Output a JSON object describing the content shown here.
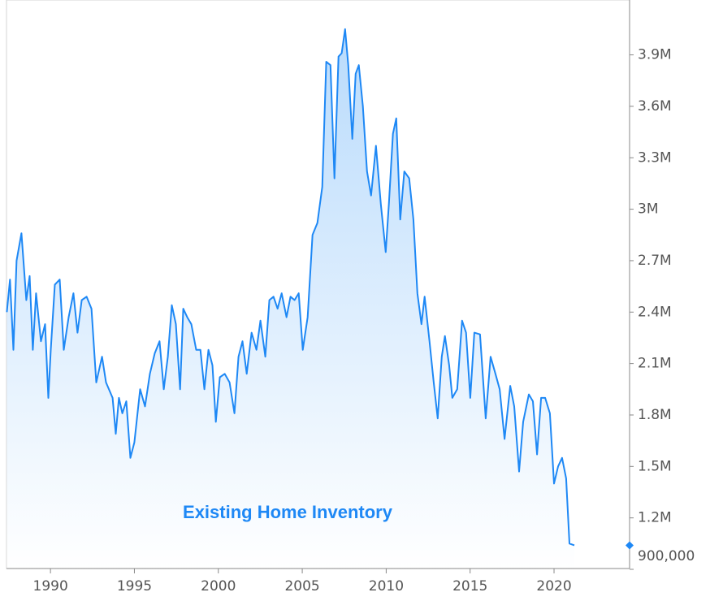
{
  "chart_data": {
    "type": "area",
    "annotation": "Existing Home Inventory",
    "color": "#1e88f5",
    "xlim": [
      1987.38,
      2024.5
    ],
    "xticks": [
      1990,
      1995,
      2000,
      2005,
      2010,
      2015,
      2020
    ],
    "ylim": [
      900000,
      4220000
    ],
    "yticks": [
      {
        "value": 900000,
        "label": "900,000"
      },
      {
        "value": 1200000,
        "label": "1.2M"
      },
      {
        "value": 1500000,
        "label": "1.5M"
      },
      {
        "value": 1800000,
        "label": "1.8M"
      },
      {
        "value": 2100000,
        "label": "2.1M"
      },
      {
        "value": 2400000,
        "label": "2.4M"
      },
      {
        "value": 2700000,
        "label": "2.7M"
      },
      {
        "value": 3000000,
        "label": "3M"
      },
      {
        "value": 3300000,
        "label": "3.3M"
      },
      {
        "value": 3600000,
        "label": "3.6M"
      },
      {
        "value": 3900000,
        "label": "3.9M"
      }
    ],
    "x": [
      1987.4,
      1987.59,
      1987.79,
      1987.98,
      1988.27,
      1988.56,
      1988.76,
      1988.95,
      1989.14,
      1989.43,
      1989.68,
      1989.87,
      1990.02,
      1990.26,
      1990.55,
      1990.79,
      1991.08,
      1991.37,
      1991.61,
      1991.86,
      1992.15,
      1992.44,
      1992.73,
      1993.07,
      1993.31,
      1993.7,
      1993.89,
      1994.08,
      1994.28,
      1994.52,
      1994.76,
      1995.0,
      1995.34,
      1995.63,
      1995.92,
      1996.21,
      1996.5,
      1996.75,
      1996.99,
      1997.23,
      1997.47,
      1997.72,
      1997.91,
      1998.15,
      1998.39,
      1998.68,
      1998.93,
      1999.17,
      1999.41,
      1999.65,
      1999.85,
      2000.09,
      2000.38,
      2000.67,
      2000.96,
      2001.2,
      2001.44,
      2001.69,
      2001.98,
      2002.27,
      2002.51,
      2002.8,
      2003.04,
      2003.29,
      2003.53,
      2003.77,
      2004.06,
      2004.3,
      2004.54,
      2004.79,
      2005.03,
      2005.32,
      2005.61,
      2005.9,
      2006.19,
      2006.43,
      2006.68,
      2006.92,
      2007.16,
      2007.35,
      2007.55,
      2007.74,
      2007.98,
      2008.18,
      2008.37,
      2008.61,
      2008.86,
      2009.1,
      2009.39,
      2009.68,
      2009.97,
      2010.16,
      2010.4,
      2010.6,
      2010.84,
      2011.08,
      2011.37,
      2011.62,
      2011.86,
      2012.1,
      2012.29,
      2012.58,
      2012.83,
      2013.07,
      2013.31,
      2013.5,
      2013.75,
      2013.94,
      2014.23,
      2014.52,
      2014.76,
      2015.01,
      2015.25,
      2015.59,
      2015.93,
      2016.22,
      2016.51,
      2016.76,
      2017.05,
      2017.39,
      2017.63,
      2017.92,
      2018.16,
      2018.5,
      2018.74,
      2018.99,
      2019.23,
      2019.47,
      2019.75,
      2020.0,
      2020.24,
      2020.48,
      2020.72,
      2020.92,
      2021.21
    ],
    "values": [
      2400000,
      2590000,
      2180000,
      2700000,
      2860000,
      2470000,
      2610000,
      2180000,
      2510000,
      2230000,
      2330000,
      1900000,
      2180000,
      2560000,
      2590000,
      2180000,
      2370000,
      2510000,
      2280000,
      2470000,
      2490000,
      2420000,
      1990000,
      2140000,
      1990000,
      1900000,
      1690000,
      1900000,
      1810000,
      1880000,
      1550000,
      1640000,
      1950000,
      1850000,
      2040000,
      2160000,
      2230000,
      1950000,
      2140000,
      2440000,
      2330000,
      1950000,
      2420000,
      2370000,
      2330000,
      2180000,
      2180000,
      1950000,
      2180000,
      2090000,
      1760000,
      2020000,
      2040000,
      1990000,
      1810000,
      2140000,
      2230000,
      2040000,
      2280000,
      2180000,
      2350000,
      2140000,
      2470000,
      2490000,
      2420000,
      2510000,
      2370000,
      2490000,
      2470000,
      2510000,
      2180000,
      2370000,
      2850000,
      2920000,
      3130000,
      3860000,
      3840000,
      3180000,
      3890000,
      3910000,
      4050000,
      3840000,
      3410000,
      3790000,
      3840000,
      3600000,
      3220000,
      3080000,
      3370000,
      3030000,
      2750000,
      3030000,
      3440000,
      3530000,
      2940000,
      3220000,
      3180000,
      2940000,
      2510000,
      2330000,
      2490000,
      2230000,
      1990000,
      1780000,
      2140000,
      2260000,
      2090000,
      1900000,
      1950000,
      2350000,
      2280000,
      1900000,
      2280000,
      2270000,
      1780000,
      2140000,
      2040000,
      1950000,
      1660000,
      1970000,
      1850000,
      1470000,
      1760000,
      1920000,
      1880000,
      1570000,
      1900000,
      1900000,
      1810000,
      1400000,
      1500000,
      1550000,
      1430000,
      1050000,
      1040000
    ]
  }
}
